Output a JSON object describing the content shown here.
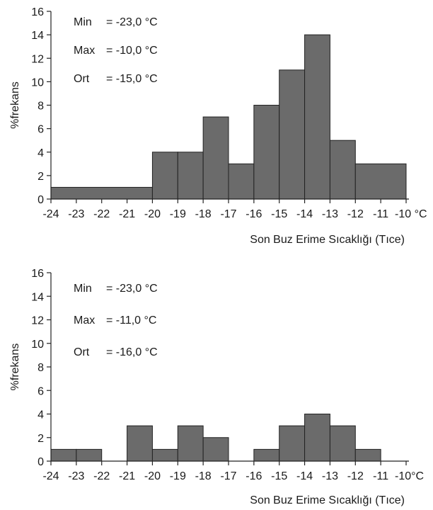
{
  "chart_data": [
    {
      "type": "bar",
      "ylabel": "%frekans",
      "xlabel": "Son Buz Erime Sıcaklığı (Tıce)",
      "y_ticks": [
        "0",
        "2",
        "4",
        "6",
        "8",
        "10",
        "12",
        "14",
        "16"
      ],
      "x_tick_labels": [
        "-24",
        "-23",
        "-22",
        "-21",
        "-20",
        "-19",
        "-18",
        "-17",
        "-16",
        "-15",
        "-14",
        "-13",
        "-12",
        "-11",
        "-10 °C"
      ],
      "ylim": [
        0,
        16
      ],
      "xlim": [
        -24,
        -10
      ],
      "stats": [
        {
          "label": "Min",
          "value": "= -23,0 °C"
        },
        {
          "label": "Max",
          "value": "= -10,0 °C"
        },
        {
          "label": "Ort",
          "value": "= -15,0 °C"
        }
      ],
      "bins": [
        {
          "x0": -24,
          "x1": -20,
          "value": 1
        },
        {
          "x0": -20,
          "x1": -19,
          "value": 4
        },
        {
          "x0": -19,
          "x1": -18,
          "value": 4
        },
        {
          "x0": -18,
          "x1": -17,
          "value": 7
        },
        {
          "x0": -17,
          "x1": -16,
          "value": 3
        },
        {
          "x0": -16,
          "x1": -15,
          "value": 8
        },
        {
          "x0": -15,
          "x1": -14,
          "value": 11
        },
        {
          "x0": -14,
          "x1": -13,
          "value": 14
        },
        {
          "x0": -13,
          "x1": -12,
          "value": 5
        },
        {
          "x0": -12,
          "x1": -10,
          "value": 3
        }
      ]
    },
    {
      "type": "bar",
      "ylabel": "%frekans",
      "xlabel": "Son Buz Erime Sıcaklığı (Tıce)",
      "y_ticks": [
        "0",
        "2",
        "4",
        "6",
        "8",
        "10",
        "12",
        "14",
        "16"
      ],
      "x_tick_labels": [
        "-24",
        "-23",
        "-22",
        "-21",
        "-20",
        "-19",
        "-18",
        "-17",
        "-16",
        "-15",
        "-14",
        "-13",
        "-12",
        "-11",
        "-10°C"
      ],
      "ylim": [
        0,
        16
      ],
      "xlim": [
        -24,
        -10
      ],
      "stats": [
        {
          "label": "Min",
          "value": "= -23,0 °C"
        },
        {
          "label": "Max",
          "value": "= -11,0 °C"
        },
        {
          "label": "Ort",
          "value": "= -16,0 °C"
        }
      ],
      "bins": [
        {
          "x0": -24,
          "x1": -23,
          "value": 1
        },
        {
          "x0": -23,
          "x1": -22,
          "value": 1
        },
        {
          "x0": -21,
          "x1": -20,
          "value": 3
        },
        {
          "x0": -20,
          "x1": -19,
          "value": 1
        },
        {
          "x0": -19,
          "x1": -18,
          "value": 3
        },
        {
          "x0": -18,
          "x1": -17,
          "value": 2
        },
        {
          "x0": -16,
          "x1": -15,
          "value": 1
        },
        {
          "x0": -15,
          "x1": -14,
          "value": 3
        },
        {
          "x0": -14,
          "x1": -13,
          "value": 4
        },
        {
          "x0": -13,
          "x1": -12,
          "value": 3
        },
        {
          "x0": -12,
          "x1": -11,
          "value": 1
        }
      ]
    }
  ]
}
